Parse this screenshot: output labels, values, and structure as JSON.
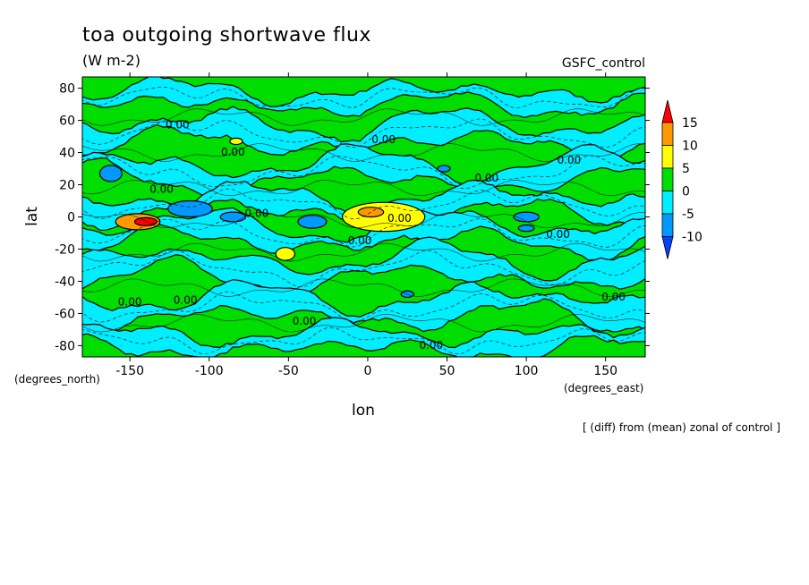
{
  "chart_data": {
    "type": "heatmap",
    "title": "toa outgoing shortwave flux",
    "units": "(W m-2)",
    "model_label": "GSFC_control",
    "xlabel": "lon",
    "ylabel": "lat",
    "x_unit_label": "(degrees_east)",
    "y_unit_label": "(degrees_north)",
    "note": "[ (diff) from (mean) zonal of control ]",
    "xlim": [
      -180,
      175
    ],
    "ylim": [
      -87,
      87
    ],
    "x_ticks": [
      -150,
      -100,
      -50,
      0,
      50,
      100,
      150
    ],
    "x_tick_labels": [
      "-150",
      "-100",
      "-50",
      "0",
      "50",
      "100",
      "150"
    ],
    "y_ticks": [
      80,
      60,
      40,
      20,
      0,
      -20,
      -40,
      -60,
      -80
    ],
    "y_tick_labels": [
      "80",
      "60",
      "40",
      "20",
      "0",
      "-20",
      "-40",
      "-60",
      "-80"
    ],
    "colorbar": {
      "levels": [
        15,
        10,
        5,
        0,
        -5,
        -10
      ],
      "labels": [
        "15",
        "10",
        "5",
        "0",
        "-5",
        "-10"
      ],
      "colors": [
        "#ff0000",
        "#ff9900",
        "#ffff00",
        "#00dd00",
        "#00eeff",
        "#0099ff",
        "#0044ff"
      ]
    },
    "contour_label": "0.00",
    "contour_label_positions": [
      {
        "lon": -120,
        "lat": 55
      },
      {
        "lon": -85,
        "lat": 38
      },
      {
        "lon": 10,
        "lat": 46
      },
      {
        "lon": 127,
        "lat": 33
      },
      {
        "lon": 75,
        "lat": 22
      },
      {
        "lon": -130,
        "lat": 15
      },
      {
        "lon": -70,
        "lat": 0
      },
      {
        "lon": 20,
        "lat": -3
      },
      {
        "lon": 120,
        "lat": -13
      },
      {
        "lon": -5,
        "lat": -17
      },
      {
        "lon": 155,
        "lat": -52
      },
      {
        "lon": -150,
        "lat": -55
      },
      {
        "lon": -115,
        "lat": -54
      },
      {
        "lon": -40,
        "lat": -67
      },
      {
        "lon": 40,
        "lat": -82
      }
    ],
    "anomaly_regions": [
      {
        "lon": -145,
        "lat": -3,
        "rlon": 14,
        "rlat": 5,
        "value": 12
      },
      {
        "lon": -140,
        "lat": -3,
        "rlon": 7,
        "rlat": 2.5,
        "value": 16
      },
      {
        "lon": 10,
        "lat": 0,
        "rlon": 26,
        "rlat": 9,
        "value": 8
      },
      {
        "lon": 2,
        "lat": 3,
        "rlon": 8,
        "rlat": 3,
        "value": 11
      },
      {
        "lon": -52,
        "lat": -23,
        "rlon": 6,
        "rlat": 4,
        "value": 7
      },
      {
        "lon": -83,
        "lat": 47,
        "rlon": 4,
        "rlat": 2,
        "value": 6
      },
      {
        "lon": -112,
        "lat": 5,
        "rlon": 14,
        "rlat": 5,
        "value": -7
      },
      {
        "lon": -85,
        "lat": 0,
        "rlon": 8,
        "rlat": 3,
        "value": -6
      },
      {
        "lon": -35,
        "lat": -3,
        "rlon": 9,
        "rlat": 4,
        "value": -6
      },
      {
        "lon": -162,
        "lat": 27,
        "rlon": 7,
        "rlat": 5,
        "value": -6
      },
      {
        "lon": 100,
        "lat": 0,
        "rlon": 8,
        "rlat": 3,
        "value": -6
      },
      {
        "lon": 100,
        "lat": -7,
        "rlon": 5,
        "rlat": 2,
        "value": -6
      },
      {
        "lon": 48,
        "lat": 30,
        "rlon": 4,
        "rlat": 2,
        "value": -6
      },
      {
        "lon": 25,
        "lat": -48,
        "rlon": 4,
        "rlat": 2,
        "value": -6
      }
    ]
  }
}
